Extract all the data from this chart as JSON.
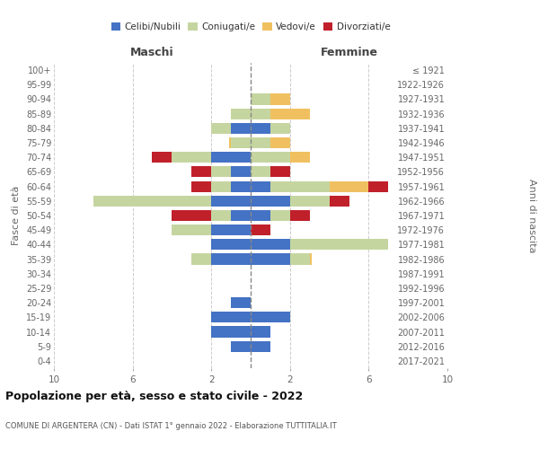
{
  "age_groups": [
    "0-4",
    "5-9",
    "10-14",
    "15-19",
    "20-24",
    "25-29",
    "30-34",
    "35-39",
    "40-44",
    "45-49",
    "50-54",
    "55-59",
    "60-64",
    "65-69",
    "70-74",
    "75-79",
    "80-84",
    "85-89",
    "90-94",
    "95-99",
    "100+"
  ],
  "birth_years": [
    "2017-2021",
    "2012-2016",
    "2007-2011",
    "2002-2006",
    "1997-2001",
    "1992-1996",
    "1987-1991",
    "1982-1986",
    "1977-1981",
    "1972-1976",
    "1967-1971",
    "1962-1966",
    "1957-1961",
    "1952-1956",
    "1947-1951",
    "1942-1946",
    "1937-1941",
    "1932-1936",
    "1927-1931",
    "1922-1926",
    "≤ 1921"
  ],
  "colors": {
    "celibi": "#4472c4",
    "coniugati": "#c5d5a0",
    "vedovi": "#f0c060",
    "divorziati": "#c0202a"
  },
  "maschi": {
    "celibi": [
      0,
      1,
      2,
      2,
      1,
      0,
      0,
      2,
      2,
      2,
      1,
      2,
      1,
      1,
      2,
      0,
      1,
      0,
      0,
      0,
      0
    ],
    "coniugati": [
      0,
      0,
      0,
      0,
      0,
      0,
      0,
      1,
      0,
      2,
      1,
      6,
      1,
      1,
      2,
      1,
      1,
      1,
      0,
      0,
      0
    ],
    "vedovi": [
      0,
      0,
      0,
      0,
      0,
      0,
      0,
      0,
      0,
      0,
      0,
      0,
      0,
      0,
      0,
      0.1,
      0,
      0,
      0,
      0,
      0
    ],
    "divorziati": [
      0,
      0,
      0,
      0,
      0,
      0,
      0,
      0,
      0,
      0,
      2,
      0,
      1,
      1,
      1,
      0,
      0,
      0,
      0,
      0,
      0
    ]
  },
  "femmine": {
    "celibi": [
      0,
      1,
      1,
      2,
      0,
      0,
      0,
      2,
      2,
      0,
      1,
      2,
      1,
      0,
      0,
      0,
      1,
      0,
      0,
      0,
      0
    ],
    "coniugati": [
      0,
      0,
      0,
      0,
      0,
      0,
      0,
      1,
      5,
      0,
      1,
      2,
      3,
      1,
      2,
      1,
      1,
      1,
      1,
      0,
      0
    ],
    "vedovi": [
      0,
      0,
      0,
      0,
      0,
      0,
      0,
      0.1,
      0,
      0,
      0,
      0,
      2,
      0,
      1,
      1,
      0,
      2,
      1,
      0,
      0
    ],
    "divorziati": [
      0,
      0,
      0,
      0,
      0,
      0,
      0,
      0,
      0,
      1,
      1,
      1,
      1,
      1,
      0,
      0,
      0,
      0,
      0,
      0,
      0
    ]
  },
  "title": "Popolazione per età, sesso e stato civile - 2022",
  "subtitle": "COMUNE DI ARGENTERA (CN) - Dati ISTAT 1° gennaio 2022 - Elaborazione TUTTITALIA.IT",
  "xlabel_left": "Maschi",
  "xlabel_right": "Femmine",
  "ylabel_left": "Fasce di età",
  "ylabel_right": "Anni di nascita",
  "xlim": 10,
  "background": "#ffffff",
  "legend_labels": [
    "Celibi/Nubili",
    "Coniugati/e",
    "Vedovi/e",
    "Divorziati/e"
  ]
}
